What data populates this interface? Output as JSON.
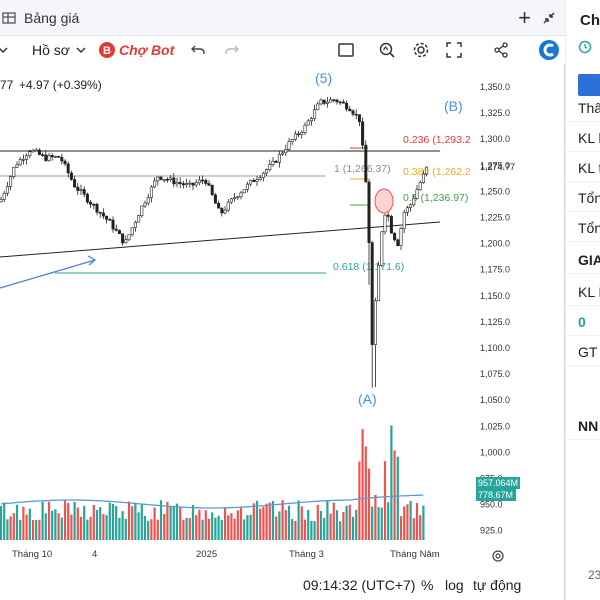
{
  "window": {
    "title": "Bảng giá",
    "add_label": "+",
    "collapse_icon": "collapse-arrows-icon"
  },
  "toolbar": {
    "interval_label": "",
    "profile_label": "Hồ sơ",
    "bot_label": "Chợ Bot"
  },
  "legend": {
    "price_fragment": "77",
    "change": "+4.97 (+0.39%)"
  },
  "chart_data": {
    "type": "candlestick",
    "price_axis": {
      "ticks": [
        "1,350.0",
        "1,325.0",
        "1,300.0",
        "1,275.0",
        "1,250.0",
        "1,225.0",
        "1,200.0",
        "1,175.0",
        "1,150.0",
        "1,125.0",
        "1,100.0",
        "1,075.0",
        "1,050.0",
        "1,025.0",
        "1,000.0",
        "975.0",
        "950.0",
        "925.0"
      ],
      "last_price_label": "1,274.77"
    },
    "volume_labels": [
      "957.064M",
      "778.67M"
    ],
    "time_axis": [
      "Tháng 10",
      "4",
      "2025",
      "Tháng 3",
      "Tháng Năm"
    ],
    "annotations": {
      "wave_5": "(5)",
      "wave_a": "(A)",
      "wave_b": "(B)"
    },
    "fibonacci": [
      {
        "label": "1 (1,266.37)",
        "value": 1266.37,
        "color": "#8a8a8a"
      },
      {
        "label": "0.236 (1,293.2",
        "value": 1293.2,
        "color": "#e53935"
      },
      {
        "label": "0.382 (1,262.2",
        "value": 1262.2,
        "color": "#f5a623"
      },
      {
        "label": "0.5 (1,236.97)",
        "value": 1236.97,
        "color": "#43a047"
      },
      {
        "label": "0.618 (1,171.6)",
        "value": 1171.6,
        "color": "#26a69a"
      }
    ],
    "colors": {
      "up": "#26a69a",
      "down": "#ef5350",
      "wave_label": "#4a90d9",
      "ma": "#5b9bd5",
      "volume_label_bg": "#26a69a"
    }
  },
  "bottom_bar": {
    "clock": "09:14:32 (UTC+7)",
    "percent_label": "%",
    "log_label": "log",
    "auto_label": "tự động"
  },
  "side_panel": {
    "title": "Ch",
    "rows": [
      "Thâ",
      "KL k",
      "KL t",
      "Tổn",
      "Tổn",
      "GIA",
      "KL N",
      "0",
      "GT",
      "NN"
    ],
    "footer": "23"
  }
}
